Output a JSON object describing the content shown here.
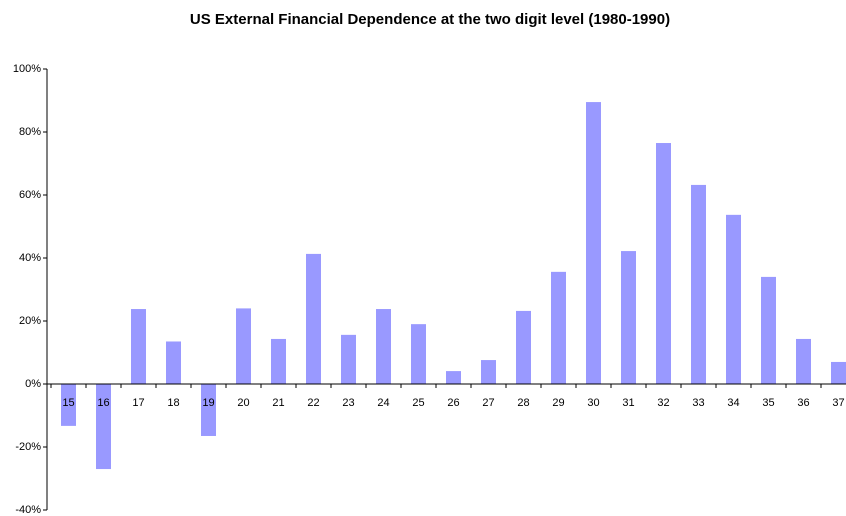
{
  "chart_data": {
    "type": "bar",
    "title": "US External Financial Dependence at the two digit level  (1980-1990)",
    "categories": [
      "15",
      "16",
      "17",
      "18",
      "19",
      "20",
      "21",
      "22",
      "23",
      "24",
      "25",
      "26",
      "27",
      "28",
      "29",
      "30",
      "31",
      "32",
      "33",
      "34",
      "35",
      "36",
      "37"
    ],
    "values": [
      -13.3,
      -27,
      23.8,
      13.5,
      -16.5,
      24,
      14.3,
      41.3,
      15.6,
      23.8,
      19,
      4.1,
      7.6,
      23.2,
      35.6,
      89.5,
      42.2,
      76.5,
      63.2,
      53.7,
      34,
      14.3,
      7
    ],
    "color": "#9999ff",
    "ylim": [
      -40,
      100
    ],
    "yticks": [
      {
        "value": -40,
        "label": "-40%"
      },
      {
        "value": -20,
        "label": "-20%"
      },
      {
        "value": 0,
        "label": "0%"
      },
      {
        "value": 20,
        "label": "20%"
      },
      {
        "value": 40,
        "label": "40%"
      },
      {
        "value": 60,
        "label": "60%"
      },
      {
        "value": 80,
        "label": "80%"
      },
      {
        "value": 100,
        "label": "100%"
      }
    ],
    "grid": false
  }
}
